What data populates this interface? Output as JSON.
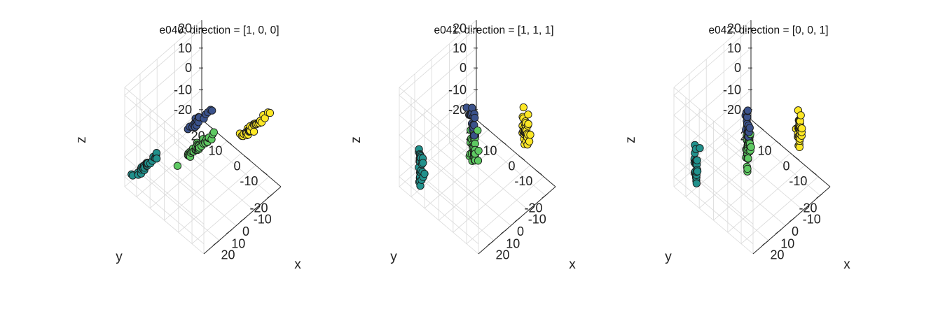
{
  "chart_data": [
    {
      "type": "scatter",
      "projection": "3d",
      "title": "e040: direction = [1, 0, 0]",
      "xlabel": "x",
      "ylabel": "y",
      "zlabel": "z",
      "xticks": [
        "-20",
        "-10",
        "0",
        "10",
        "20"
      ],
      "yticks": [
        "-10",
        "0",
        "10",
        "20"
      ],
      "zticks": [
        "-20",
        "-10",
        "0",
        "10",
        "20"
      ],
      "xlim": [
        -30,
        30
      ],
      "ylim": [
        -20,
        25
      ],
      "zlim": [
        -30,
        25
      ],
      "grid": true,
      "clusters": [
        {
          "color": "#3b528b",
          "center": [
            -20,
            -15,
            -20
          ],
          "spread": [
            6,
            0.6,
            0.6
          ],
          "count": 18
        },
        {
          "color": "#21918c",
          "center": [
            20,
            -15,
            -20
          ],
          "spread": [
            6,
            0.6,
            0.6
          ],
          "count": 30
        },
        {
          "color": "#fde725",
          "center": [
            -20,
            15,
            0
          ],
          "spread": [
            6,
            0.6,
            0.6
          ],
          "count": 35
        },
        {
          "color": "#5ec962",
          "center": [
            20,
            15,
            15
          ],
          "spread": [
            6,
            0.6,
            0.6
          ],
          "count": 40
        }
      ]
    },
    {
      "type": "scatter",
      "projection": "3d",
      "title": "e041: direction = [1, 1, 1]",
      "xlabel": "x",
      "ylabel": "y",
      "zlabel": "z",
      "xticks": [
        "-20",
        "-10",
        "0",
        "10",
        "20"
      ],
      "yticks": [
        "-10",
        "0",
        "10",
        "20"
      ],
      "zticks": [
        "-20",
        "-10",
        "0",
        "10",
        "20"
      ],
      "xlim": [
        -30,
        30
      ],
      "ylim": [
        -20,
        25
      ],
      "zlim": [
        -30,
        25
      ],
      "grid": true,
      "clusters": [
        {
          "color": "#3b528b",
          "center": [
            -20,
            -15,
            -20
          ],
          "spread": [
            1.0,
            1.0,
            5
          ],
          "count": 16
        },
        {
          "color": "#21918c",
          "center": [
            20,
            -15,
            -20
          ],
          "spread": [
            1.0,
            1.0,
            5
          ],
          "count": 28
        },
        {
          "color": "#fde725",
          "center": [
            -20,
            15,
            0
          ],
          "spread": [
            1.0,
            1.0,
            5
          ],
          "count": 35
        },
        {
          "color": "#5ec962",
          "center": [
            20,
            15,
            15
          ],
          "spread": [
            1.0,
            1.0,
            5
          ],
          "count": 38
        }
      ]
    },
    {
      "type": "scatter",
      "projection": "3d",
      "title": "e042: direction = [0, 0, 1]",
      "xlabel": "x",
      "ylabel": "y",
      "zlabel": "z",
      "xticks": [
        "-20",
        "-10",
        "0",
        "10",
        "20"
      ],
      "yticks": [
        "-10",
        "0",
        "10",
        "20"
      ],
      "zticks": [
        "-20",
        "-10",
        "0",
        "10",
        "20"
      ],
      "xlim": [
        -30,
        30
      ],
      "ylim": [
        -20,
        25
      ],
      "zlim": [
        -30,
        25
      ],
      "grid": true,
      "clusters": [
        {
          "color": "#3b528b",
          "center": [
            -20,
            -15,
            -20
          ],
          "spread": [
            0.6,
            0.6,
            6
          ],
          "count": 16
        },
        {
          "color": "#21918c",
          "center": [
            20,
            -15,
            -20
          ],
          "spread": [
            0.6,
            0.6,
            6
          ],
          "count": 28
        },
        {
          "color": "#fde725",
          "center": [
            -20,
            15,
            0
          ],
          "spread": [
            0.6,
            0.6,
            6
          ],
          "count": 35
        },
        {
          "color": "#5ec962",
          "center": [
            20,
            15,
            15
          ],
          "spread": [
            0.6,
            0.6,
            6
          ],
          "count": 38
        }
      ]
    }
  ]
}
